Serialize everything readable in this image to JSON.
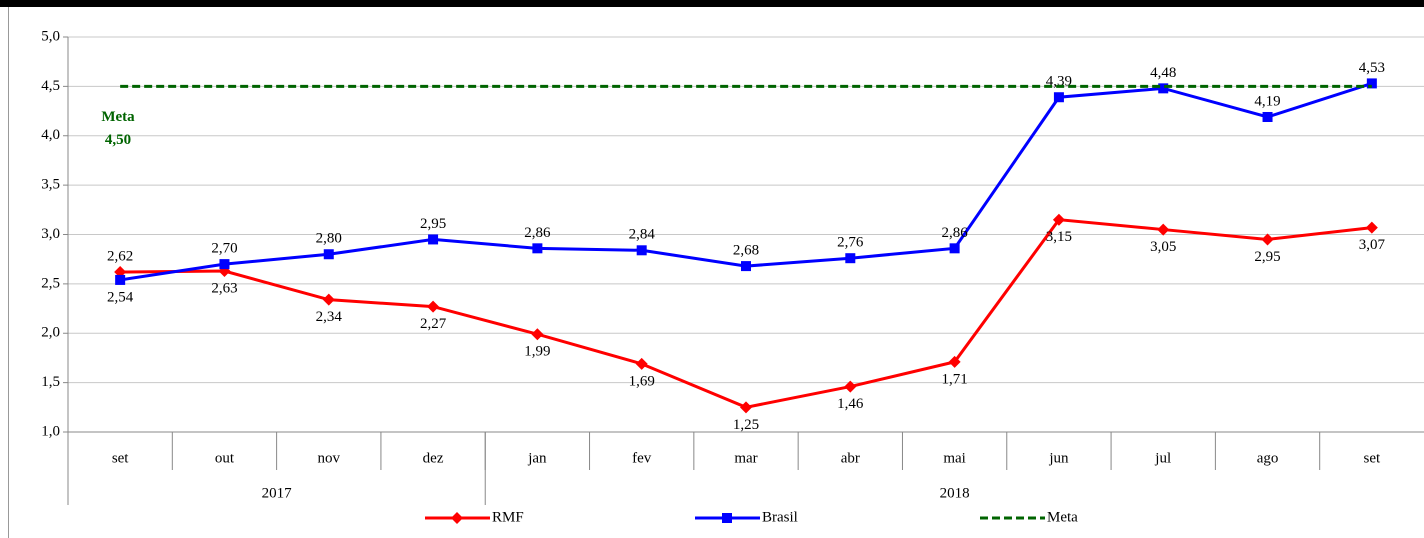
{
  "chart_data": {
    "type": "line",
    "categories": [
      "set",
      "out",
      "nov",
      "dez",
      "jan",
      "fev",
      "mar",
      "abr",
      "mai",
      "jun",
      "jul",
      "ago",
      "set"
    ],
    "x_groups": [
      {
        "label": "2017",
        "count": 4
      },
      {
        "label": "2018",
        "count": 9
      }
    ],
    "series": [
      {
        "name": "RMF",
        "color": "#ff0000",
        "marker": "diamond",
        "values": [
          2.62,
          2.63,
          2.34,
          2.27,
          1.99,
          1.69,
          1.25,
          1.46,
          1.71,
          3.15,
          3.05,
          2.95,
          3.07
        ],
        "value_labels": [
          "2,62",
          "2,63",
          "2,34",
          "2,27",
          "1,99",
          "1,69",
          "1,25",
          "1,46",
          "1,71",
          "3,15",
          "3,05",
          "2,95",
          "3,07"
        ]
      },
      {
        "name": "Brasil",
        "color": "#0000ff",
        "marker": "square",
        "values": [
          2.54,
          2.7,
          2.8,
          2.95,
          2.86,
          2.84,
          2.68,
          2.76,
          2.86,
          4.39,
          4.48,
          4.19,
          4.53
        ],
        "value_labels": [
          "2,54",
          "2,70",
          "2,80",
          "2,95",
          "2,86",
          "2,84",
          "2,68",
          "2,76",
          "2,86",
          "4,39",
          "4,48",
          "4,19",
          "4,53"
        ]
      },
      {
        "name": "Meta",
        "color": "#006400",
        "dashed": true,
        "values": [
          4.5,
          4.5,
          4.5,
          4.5,
          4.5,
          4.5,
          4.5,
          4.5,
          4.5,
          4.5,
          4.5,
          4.5,
          4.5
        ]
      }
    ],
    "annotation": {
      "title": "Meta",
      "label": "4,50",
      "value": 4.5
    },
    "ylim": [
      1,
      5
    ],
    "yticks": [
      {
        "value": 1,
        "label": "1,0"
      },
      {
        "value": 1.5,
        "label": "1,5"
      },
      {
        "value": 2,
        "label": "2,0"
      },
      {
        "value": 2.5,
        "label": "2,5"
      },
      {
        "value": 3,
        "label": "3,0"
      },
      {
        "value": 3.5,
        "label": "3,5"
      },
      {
        "value": 4,
        "label": "4,0"
      },
      {
        "value": 4.5,
        "label": "4,5"
      },
      {
        "value": 5,
        "label": "5,0"
      }
    ],
    "grid": true,
    "legend": "bottom"
  }
}
